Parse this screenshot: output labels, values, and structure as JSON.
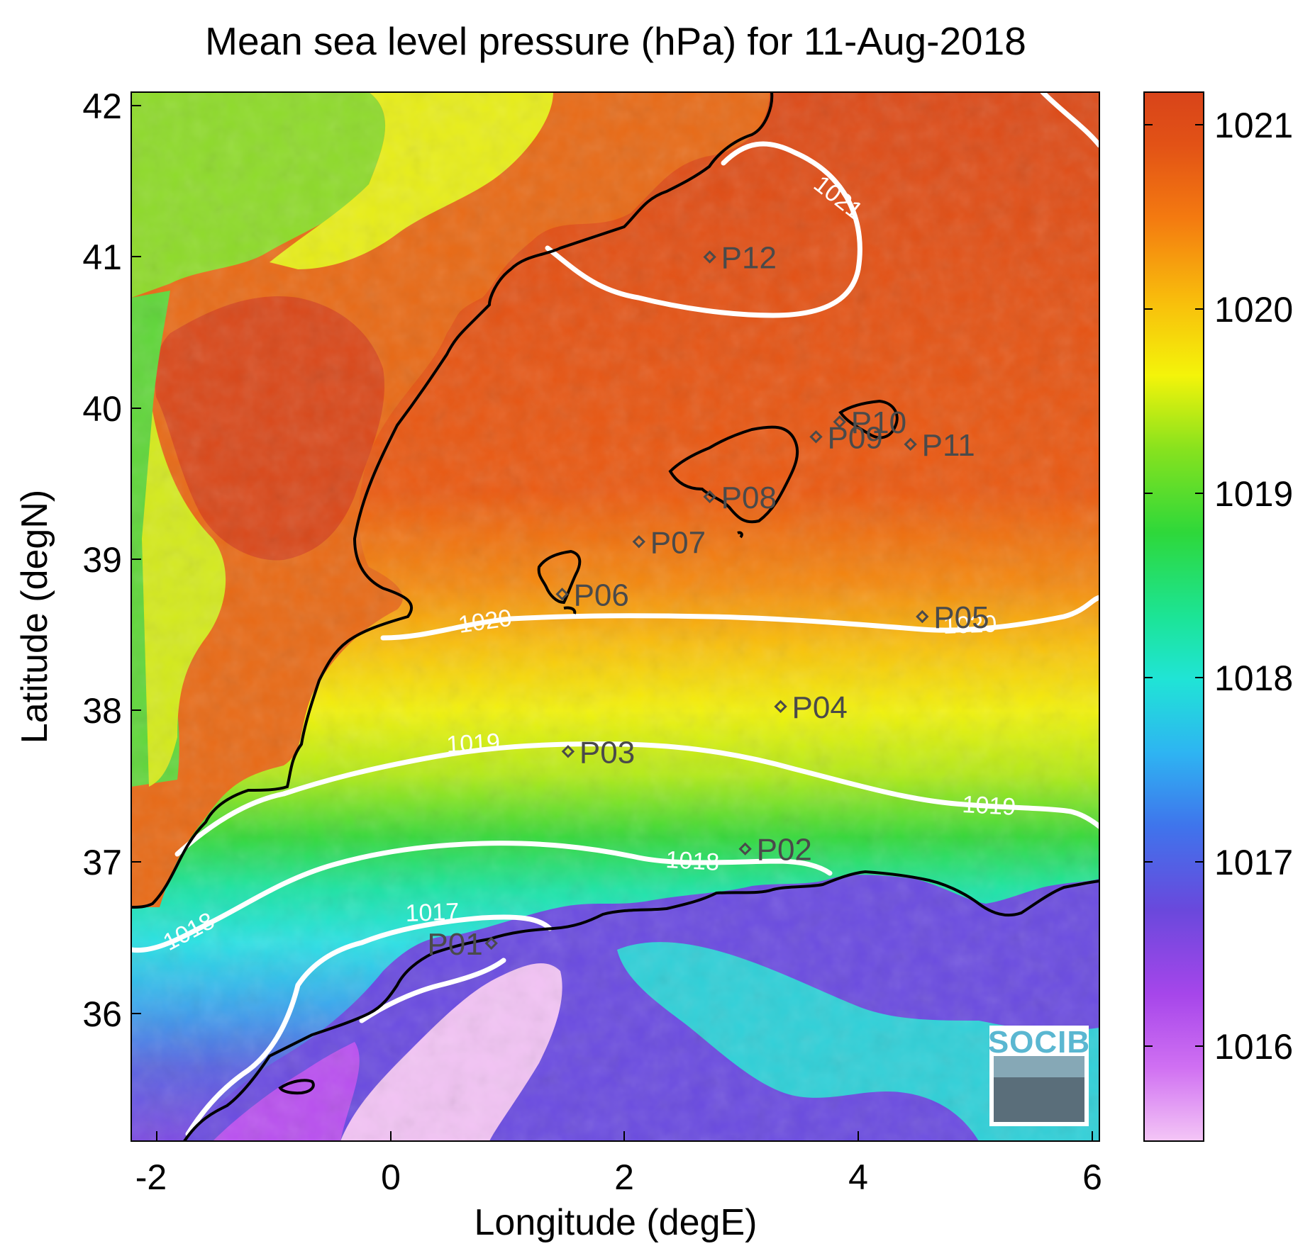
{
  "title": "Mean sea level pressure (hPa) for 11-Aug-2018",
  "xlabel": "Longitude (degE)",
  "ylabel": "Latitude (degN)",
  "x_ticks": [
    "-2",
    "0",
    "2",
    "4",
    "6"
  ],
  "y_ticks": [
    "36",
    "37",
    "38",
    "39",
    "40",
    "41",
    "42"
  ],
  "colorbar": {
    "ticks": [
      "1016",
      "1017",
      "1018",
      "1019",
      "1020",
      "1021"
    ],
    "colors": [
      "#f2c0f4",
      "#c35cf0",
      "#6d47dc",
      "#3a7ef0",
      "#2fd4f0",
      "#18e2a8",
      "#2ed83a",
      "#a8ea1c",
      "#f6f60a",
      "#f9b40c",
      "#f26510",
      "#d8441a"
    ]
  },
  "contour_labels": [
    "1021",
    "1020",
    "1020",
    "1019",
    "1019",
    "1018",
    "1018",
    "1017"
  ],
  "logo_text": "SOCIB",
  "stations": [
    {
      "name": "P01",
      "lon": 0.85,
      "lat": 36.52
    },
    {
      "name": "P02",
      "lon": 3.0,
      "lat": 37.15
    },
    {
      "name": "P03",
      "lon": 1.5,
      "lat": 37.8
    },
    {
      "name": "P04",
      "lon": 3.3,
      "lat": 38.1
    },
    {
      "name": "P05",
      "lon": 4.5,
      "lat": 38.7
    },
    {
      "name": "P06",
      "lon": 1.45,
      "lat": 38.85
    },
    {
      "name": "P07",
      "lon": 2.1,
      "lat": 39.2
    },
    {
      "name": "P08",
      "lon": 2.7,
      "lat": 39.5
    },
    {
      "name": "P09",
      "lon": 3.6,
      "lat": 39.9
    },
    {
      "name": "P10",
      "lon": 3.8,
      "lat": 40.0
    },
    {
      "name": "P11",
      "lon": 4.4,
      "lat": 39.85
    },
    {
      "name": "P12",
      "lon": 2.7,
      "lat": 41.1
    }
  ],
  "chart_data": {
    "type": "heatmap",
    "title": "Mean sea level pressure (hPa) for 11-Aug-2018",
    "xlabel": "Longitude (degE)",
    "ylabel": "Latitude (degN)",
    "xlim": [
      -2.2,
      6.0
    ],
    "ylim": [
      35.2,
      42.2
    ],
    "colorbar_range": [
      1015.5,
      1021.2
    ],
    "colorbar_ticks": [
      1016,
      1017,
      1018,
      1019,
      1020,
      1021
    ],
    "contour_levels": [
      1017,
      1018,
      1019,
      1020,
      1021
    ],
    "colormap": "jet-like (pink → purple → blue → cyan → green → yellow → orange → red)"
  }
}
